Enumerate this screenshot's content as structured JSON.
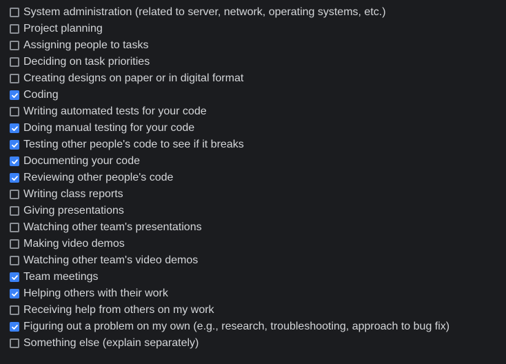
{
  "colors": {
    "background": "#1b1c1f",
    "text": "#d4d6d9",
    "checkbox_border": "#8c9096",
    "checkbox_checked": "#3b82f6"
  },
  "options": [
    {
      "label": "System administration (related to server, network, operating systems, etc.)",
      "checked": false
    },
    {
      "label": "Project planning",
      "checked": false
    },
    {
      "label": "Assigning people to tasks",
      "checked": false
    },
    {
      "label": "Deciding on task priorities",
      "checked": false
    },
    {
      "label": "Creating designs on paper or in digital format",
      "checked": false
    },
    {
      "label": "Coding",
      "checked": true
    },
    {
      "label": "Writing automated tests for your code",
      "checked": false
    },
    {
      "label": "Doing manual testing for your code",
      "checked": true
    },
    {
      "label": "Testing other people's code to see if it breaks",
      "checked": true
    },
    {
      "label": "Documenting your code",
      "checked": true
    },
    {
      "label": "Reviewing other people's code",
      "checked": true
    },
    {
      "label": "Writing class reports",
      "checked": false
    },
    {
      "label": "Giving presentations",
      "checked": false
    },
    {
      "label": "Watching other team's presentations",
      "checked": false
    },
    {
      "label": "Making video demos",
      "checked": false
    },
    {
      "label": "Watching other team's video demos",
      "checked": false
    },
    {
      "label": "Team meetings",
      "checked": true
    },
    {
      "label": "Helping others with their work",
      "checked": true
    },
    {
      "label": "Receiving help from others on my work",
      "checked": false
    },
    {
      "label": "Figuring out a problem on my own (e.g., research, troubleshooting, approach to bug fix)",
      "checked": true
    },
    {
      "label": "Something else (explain separately)",
      "checked": false
    }
  ]
}
